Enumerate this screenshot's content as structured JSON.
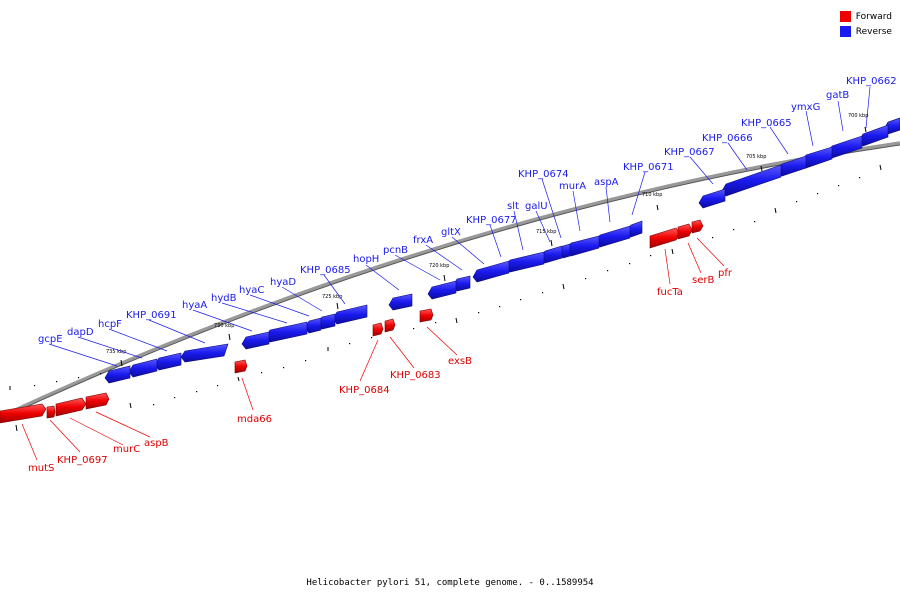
{
  "legend": {
    "items": [
      {
        "label": "Forward",
        "color": "#ee0000"
      },
      {
        "label": "Reverse",
        "color": "#1a1aee"
      }
    ]
  },
  "caption": "Helicobacter pylori 51, complete genome. - 0..1589954",
  "scale_labels": [
    "700 kbp",
    "705 kbp",
    "710 kbp",
    "715 kbp",
    "720 kbp",
    "725 kbp",
    "730 kbp",
    "735 kbp"
  ],
  "reverse_genes": [
    "KHP_0662",
    "gatB",
    "ymxG",
    "KHP_0665",
    "KHP_0666",
    "KHP_0667",
    "KHP_0671",
    "aspA",
    "murA",
    "KHP_0674",
    "galU",
    "slt",
    "KHP_0677",
    "gltX",
    "frxA",
    "pcnB",
    "hopH",
    "KHP_0685",
    "hyaD",
    "hyaC",
    "hydB",
    "hyaA",
    "KHP_0691",
    "hcpF",
    "dapD",
    "gcpE"
  ],
  "forward_genes": [
    "mutS",
    "KHP_0697",
    "murC",
    "aspB",
    "mda66",
    "KHP_0684",
    "KHP_0683",
    "exsB",
    "fucTa",
    "serB",
    "pfr"
  ],
  "colors": {
    "forward": "#ee0000",
    "reverse": "#1a1aee",
    "backbone": "#888888"
  }
}
